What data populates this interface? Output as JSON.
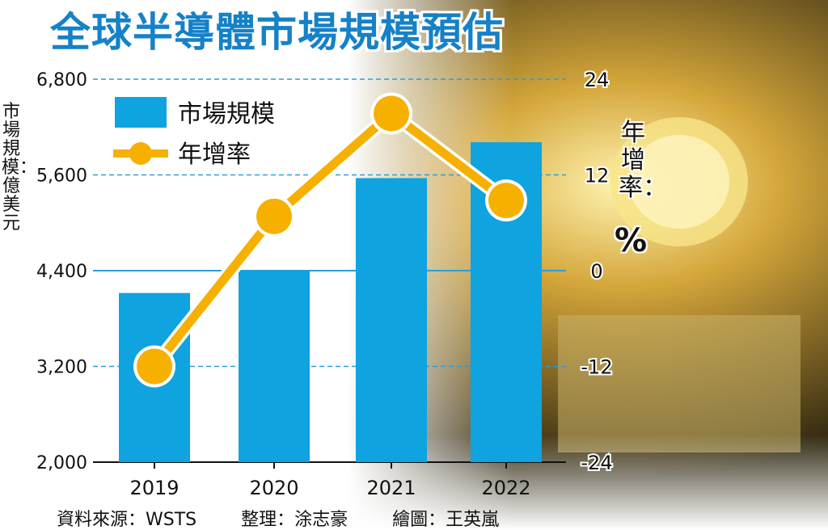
{
  "title": "全球半導體市場規模預估",
  "chart_data": {
    "type": "bar+line",
    "categories": [
      "2019",
      "2020",
      "2021",
      "2022"
    ],
    "series": [
      {
        "name": "市場規模",
        "type": "bar",
        "axis": "left",
        "values": [
          4120,
          4400,
          5560,
          6010
        ]
      },
      {
        "name": "年增率",
        "type": "line",
        "axis": "right",
        "values": [
          -12,
          6.8,
          19.7,
          8.8
        ]
      }
    ],
    "y_left": {
      "label": "市場規模：億美元",
      "min": 2000,
      "max": 6800,
      "ticks": [
        "2,000",
        "3,200",
        "4,400",
        "5,600",
        "6,800"
      ],
      "tick_values": [
        2000,
        3200,
        4400,
        5600,
        6800
      ]
    },
    "y_right": {
      "label": "年增率：",
      "unit": "%",
      "min": -24,
      "max": 24,
      "ticks": [
        "-24",
        "-12",
        "0",
        "12",
        "24"
      ],
      "tick_values": [
        -24,
        -12,
        0,
        12,
        24
      ]
    },
    "legend_position": "top-left",
    "colors": {
      "bar": "#0fa3e0",
      "line": "#f6b000",
      "title": "#1581c8",
      "grid": "#2a9fd6"
    }
  },
  "footer": {
    "source": "資料來源：WSTS",
    "editor": "整理：涂志豪",
    "illustrator": "繪圖：王英嵐"
  }
}
